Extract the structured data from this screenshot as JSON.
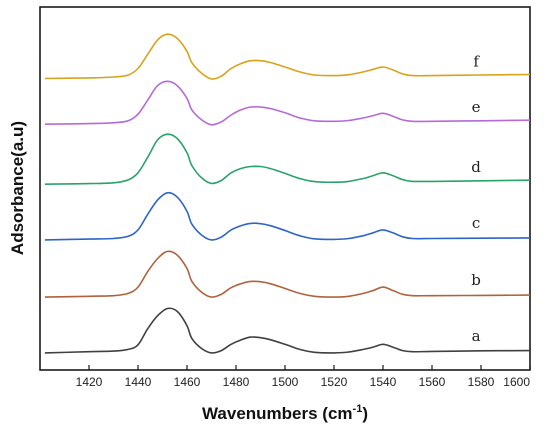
{
  "chart_data": {
    "type": "line",
    "xlabel": "Wavenumbers (cm",
    "xlabel_superscript": "-1",
    "xlabel_suffix": ")",
    "ylabel": "Adsorbance(a.u)",
    "xlim": [
      1400,
      1600
    ],
    "x_ticks": [
      1420,
      1440,
      1460,
      1480,
      1500,
      1520,
      1540,
      1560,
      1580,
      1600
    ],
    "y_ticks_shown": false,
    "grid": false,
    "legend": "none",
    "series": [
      {
        "name": "a",
        "color": "#404040",
        "baseline": 0.0,
        "points": [
          [
            1402,
            0.0
          ],
          [
            1420,
            0.04
          ],
          [
            1430,
            0.06
          ],
          [
            1436,
            0.12
          ],
          [
            1440,
            0.28
          ],
          [
            1444,
            0.85
          ],
          [
            1448,
            1.3
          ],
          [
            1452,
            1.55
          ],
          [
            1456,
            1.45
          ],
          [
            1460,
            0.95
          ],
          [
            1462,
            0.5
          ],
          [
            1466,
            0.15
          ],
          [
            1470,
            0.0
          ],
          [
            1474,
            0.08
          ],
          [
            1478,
            0.3
          ],
          [
            1482,
            0.45
          ],
          [
            1486,
            0.55
          ],
          [
            1490,
            0.53
          ],
          [
            1494,
            0.46
          ],
          [
            1500,
            0.3
          ],
          [
            1506,
            0.12
          ],
          [
            1512,
            0.02
          ],
          [
            1520,
            0.0
          ],
          [
            1526,
            0.03
          ],
          [
            1532,
            0.12
          ],
          [
            1536,
            0.2
          ],
          [
            1540,
            0.3
          ],
          [
            1544,
            0.2
          ],
          [
            1548,
            0.08
          ],
          [
            1552,
            0.04
          ],
          [
            1560,
            0.05
          ],
          [
            1580,
            0.07
          ],
          [
            1600,
            0.08
          ]
        ]
      },
      {
        "name": "b",
        "color": "#b0623c",
        "baseline": 1.95,
        "points": [
          [
            1402,
            1.95
          ],
          [
            1420,
            1.98
          ],
          [
            1430,
            2.0
          ],
          [
            1436,
            2.08
          ],
          [
            1440,
            2.3
          ],
          [
            1444,
            2.85
          ],
          [
            1448,
            3.3
          ],
          [
            1452,
            3.55
          ],
          [
            1456,
            3.42
          ],
          [
            1460,
            2.95
          ],
          [
            1462,
            2.5
          ],
          [
            1466,
            2.12
          ],
          [
            1470,
            1.95
          ],
          [
            1474,
            2.05
          ],
          [
            1478,
            2.28
          ],
          [
            1482,
            2.42
          ],
          [
            1486,
            2.5
          ],
          [
            1490,
            2.49
          ],
          [
            1494,
            2.42
          ],
          [
            1500,
            2.25
          ],
          [
            1506,
            2.08
          ],
          [
            1512,
            1.98
          ],
          [
            1520,
            1.95
          ],
          [
            1526,
            1.98
          ],
          [
            1532,
            2.08
          ],
          [
            1536,
            2.18
          ],
          [
            1540,
            2.3
          ],
          [
            1544,
            2.18
          ],
          [
            1548,
            2.05
          ],
          [
            1552,
            2.0
          ],
          [
            1560,
            2.0
          ],
          [
            1580,
            2.01
          ],
          [
            1600,
            2.02
          ]
        ]
      },
      {
        "name": "c",
        "color": "#2e64c7",
        "baseline": 3.95,
        "points": [
          [
            1402,
            3.95
          ],
          [
            1420,
            3.98
          ],
          [
            1430,
            4.0
          ],
          [
            1436,
            4.08
          ],
          [
            1440,
            4.3
          ],
          [
            1444,
            4.85
          ],
          [
            1448,
            5.35
          ],
          [
            1452,
            5.6
          ],
          [
            1456,
            5.45
          ],
          [
            1460,
            4.95
          ],
          [
            1462,
            4.5
          ],
          [
            1466,
            4.12
          ],
          [
            1470,
            3.95
          ],
          [
            1474,
            4.05
          ],
          [
            1478,
            4.3
          ],
          [
            1482,
            4.45
          ],
          [
            1486,
            4.53
          ],
          [
            1490,
            4.52
          ],
          [
            1494,
            4.45
          ],
          [
            1500,
            4.28
          ],
          [
            1506,
            4.1
          ],
          [
            1512,
            3.99
          ],
          [
            1520,
            3.97
          ],
          [
            1526,
            4.0
          ],
          [
            1532,
            4.1
          ],
          [
            1536,
            4.2
          ],
          [
            1540,
            4.3
          ],
          [
            1544,
            4.2
          ],
          [
            1548,
            4.06
          ],
          [
            1552,
            4.0
          ],
          [
            1560,
            4.0
          ],
          [
            1580,
            4.01
          ],
          [
            1600,
            4.02
          ]
        ]
      },
      {
        "name": "d",
        "color": "#2aa36a",
        "baseline": 5.9,
        "points": [
          [
            1402,
            5.9
          ],
          [
            1420,
            5.92
          ],
          [
            1430,
            5.95
          ],
          [
            1436,
            6.05
          ],
          [
            1440,
            6.3
          ],
          [
            1444,
            6.85
          ],
          [
            1448,
            7.45
          ],
          [
            1452,
            7.65
          ],
          [
            1456,
            7.5
          ],
          [
            1460,
            7.0
          ],
          [
            1462,
            6.55
          ],
          [
            1466,
            6.12
          ],
          [
            1470,
            5.93
          ],
          [
            1474,
            6.03
          ],
          [
            1478,
            6.3
          ],
          [
            1482,
            6.45
          ],
          [
            1486,
            6.52
          ],
          [
            1490,
            6.52
          ],
          [
            1494,
            6.45
          ],
          [
            1500,
            6.28
          ],
          [
            1506,
            6.1
          ],
          [
            1512,
            5.99
          ],
          [
            1520,
            5.97
          ],
          [
            1526,
            6.0
          ],
          [
            1532,
            6.1
          ],
          [
            1536,
            6.2
          ],
          [
            1540,
            6.3
          ],
          [
            1544,
            6.2
          ],
          [
            1548,
            6.06
          ],
          [
            1552,
            6.0
          ],
          [
            1560,
            6.0
          ],
          [
            1580,
            6.02
          ],
          [
            1600,
            6.04
          ]
        ]
      },
      {
        "name": "e",
        "color": "#b56bd6",
        "baseline": 8.0,
        "points": [
          [
            1402,
            8.0
          ],
          [
            1420,
            8.02
          ],
          [
            1430,
            8.05
          ],
          [
            1436,
            8.12
          ],
          [
            1440,
            8.35
          ],
          [
            1444,
            8.85
          ],
          [
            1448,
            9.35
          ],
          [
            1452,
            9.5
          ],
          [
            1456,
            9.35
          ],
          [
            1460,
            8.9
          ],
          [
            1462,
            8.5
          ],
          [
            1466,
            8.15
          ],
          [
            1470,
            7.98
          ],
          [
            1474,
            8.08
          ],
          [
            1478,
            8.32
          ],
          [
            1482,
            8.5
          ],
          [
            1486,
            8.6
          ],
          [
            1490,
            8.6
          ],
          [
            1494,
            8.55
          ],
          [
            1500,
            8.4
          ],
          [
            1506,
            8.22
          ],
          [
            1512,
            8.12
          ],
          [
            1520,
            8.1
          ],
          [
            1526,
            8.13
          ],
          [
            1532,
            8.22
          ],
          [
            1536,
            8.3
          ],
          [
            1540,
            8.38
          ],
          [
            1544,
            8.28
          ],
          [
            1548,
            8.15
          ],
          [
            1552,
            8.1
          ],
          [
            1560,
            8.1
          ],
          [
            1580,
            8.12
          ],
          [
            1600,
            8.14
          ]
        ]
      },
      {
        "name": "f",
        "color": "#d9a21b",
        "baseline": 9.6,
        "points": [
          [
            1402,
            9.6
          ],
          [
            1420,
            9.62
          ],
          [
            1430,
            9.65
          ],
          [
            1436,
            9.72
          ],
          [
            1440,
            9.95
          ],
          [
            1444,
            10.45
          ],
          [
            1448,
            10.95
          ],
          [
            1452,
            11.15
          ],
          [
            1456,
            11.0
          ],
          [
            1460,
            10.55
          ],
          [
            1462,
            10.15
          ],
          [
            1466,
            9.78
          ],
          [
            1470,
            9.58
          ],
          [
            1474,
            9.68
          ],
          [
            1478,
            9.95
          ],
          [
            1482,
            10.12
          ],
          [
            1486,
            10.22
          ],
          [
            1490,
            10.22
          ],
          [
            1494,
            10.16
          ],
          [
            1500,
            10.0
          ],
          [
            1506,
            9.83
          ],
          [
            1512,
            9.72
          ],
          [
            1520,
            9.7
          ],
          [
            1526,
            9.73
          ],
          [
            1532,
            9.83
          ],
          [
            1536,
            9.92
          ],
          [
            1540,
            10.0
          ],
          [
            1544,
            9.9
          ],
          [
            1548,
            9.76
          ],
          [
            1552,
            9.7
          ],
          [
            1560,
            9.7
          ],
          [
            1580,
            9.72
          ],
          [
            1600,
            9.74
          ]
        ]
      }
    ]
  }
}
